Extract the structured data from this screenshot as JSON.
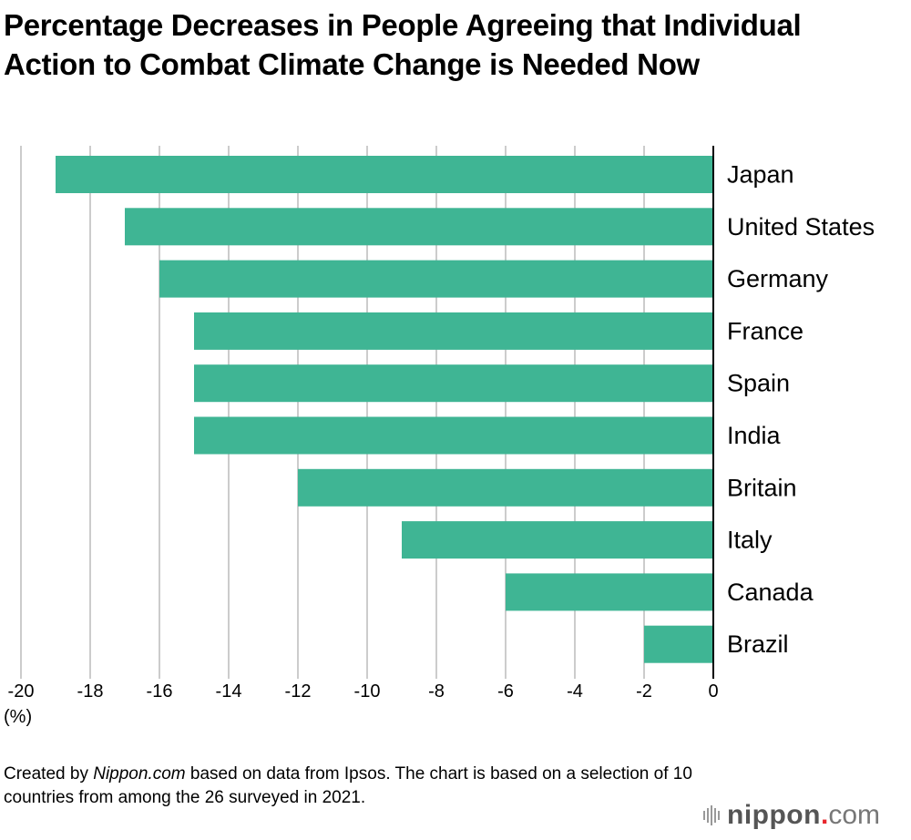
{
  "title": "Percentage Decreases in People Agreeing that Individual Action to Combat Climate Change is Needed Now",
  "note": {
    "prefix": "Created by ",
    "source_italic": "Nippon.com",
    "rest": " based on data from Ipsos. The chart is based on a selection of 10 countries from among the 26 surveyed in 2021."
  },
  "logo": {
    "brand": "nippon",
    "dot": ".",
    "com": "com"
  },
  "colors": {
    "bar": "#3fb594",
    "grid": "#cccccc",
    "axis": "#000000"
  },
  "chart_data": {
    "type": "bar",
    "orientation": "horizontal",
    "title": "Percentage Decreases in People Agreeing that Individual Action to Combat Climate Change is Needed Now",
    "categories": [
      "Japan",
      "United States",
      "Germany",
      "France",
      "Spain",
      "India",
      "Britain",
      "Italy",
      "Canada",
      "Brazil"
    ],
    "values": [
      -19,
      -17,
      -16,
      -15,
      -15,
      -15,
      -12,
      -9,
      -6,
      -2
    ],
    "xlabel": "(%)",
    "ylabel": "",
    "xlim": [
      -20,
      0
    ],
    "xticks": [
      -20,
      -18,
      -16,
      -14,
      -12,
      -10,
      -8,
      -6,
      -4,
      -2,
      0
    ],
    "xtick_labels": [
      "-20",
      "-18",
      "-16",
      "-14",
      "-12",
      "-10",
      "-8",
      "-6",
      "-4",
      "-2",
      "0"
    ],
    "grid": true,
    "legend": "none"
  }
}
